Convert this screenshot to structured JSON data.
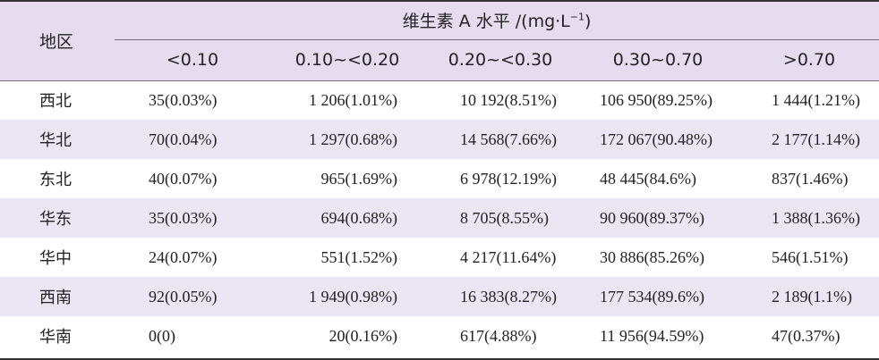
{
  "header": {
    "region_label": "地区",
    "group_label": "维生素 A 水平 /(mg·L",
    "group_label_sup": "−1",
    "group_label_close": ")",
    "columns": [
      "<0.10",
      "0.10~<0.20",
      "0.20~<0.30",
      "0.30~0.70",
      ">0.70"
    ]
  },
  "rows": [
    {
      "region": "西北",
      "cells": [
        "35(0.03%)",
        "1 206(1.01%)",
        "10 192(8.51%)",
        "106 950(89.25%)",
        "1 444(1.21%)"
      ]
    },
    {
      "region": "华北",
      "cells": [
        "70(0.04%)",
        "1 297(0.68%)",
        "14 568(7.66%)",
        "172 067(90.48%)",
        "2 177(1.14%)"
      ]
    },
    {
      "region": "东北",
      "cells": [
        "40(0.07%)",
        "965(1.69%)",
        "6 978(12.19%)",
        "48 445(84.6%)",
        "837(1.46%)"
      ]
    },
    {
      "region": "华东",
      "cells": [
        "35(0.03%)",
        "694(0.68%)",
        "8 705(8.55%)",
        "90 960(89.37%)",
        "1 388(1.36%)"
      ]
    },
    {
      "region": "华中",
      "cells": [
        "24(0.07%)",
        "551(1.52%)",
        "4 217(11.64%)",
        "30 886(85.26%)",
        "546(1.51%)"
      ]
    },
    {
      "region": "西南",
      "cells": [
        "92(0.05%)",
        "1 949(0.98%)",
        "16 383(8.27%)",
        "177 534(89.6%)",
        "2 189(1.1%)"
      ]
    },
    {
      "region": "华南",
      "cells": [
        "0(0)",
        "20(0.16%)",
        "617(4.88%)",
        "11 956(94.59%)",
        "47(0.37%)"
      ]
    }
  ],
  "colors": {
    "header_bg": "#e6dcf0",
    "alt_row_bg": "#ece6f4",
    "rule": "#333333"
  }
}
